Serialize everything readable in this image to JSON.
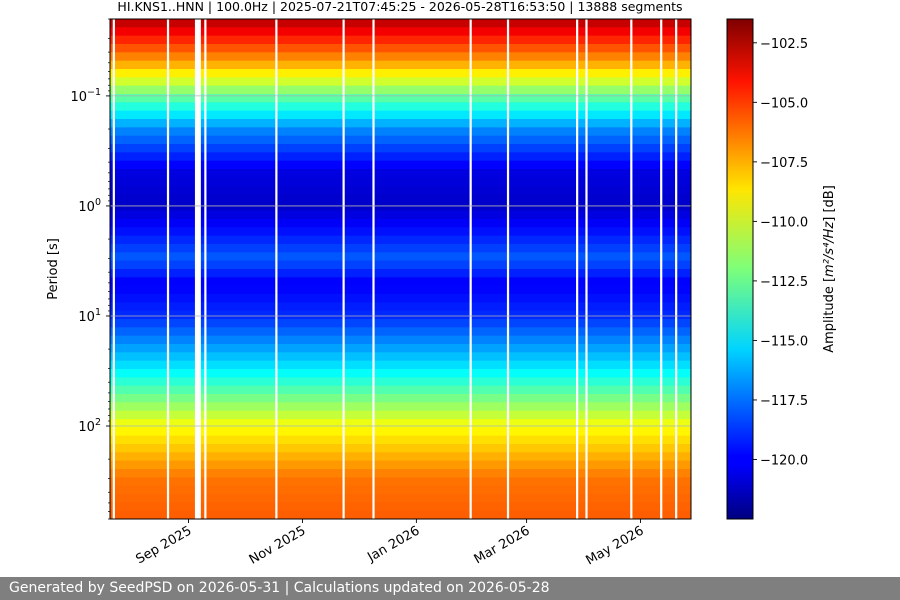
{
  "chart_data": {
    "type": "heatmap",
    "title": "HI.KNS1..HNN | 100.0Hz | 2025-07-21T07:45:25 - 2026-05-28T16:53:50 | 13888 segments",
    "ylabel": "Period [s]",
    "xlabel": "",
    "y_scale": "log",
    "y_inverted": true,
    "y_ticks": [
      {
        "value": 0.1,
        "base": "10",
        "exp": "−1"
      },
      {
        "value": 1,
        "base": "10",
        "exp": "0"
      },
      {
        "value": 10,
        "base": "10",
        "exp": "1"
      },
      {
        "value": 100,
        "base": "10",
        "exp": "2"
      }
    ],
    "ylim_period_s": [
      0.02,
      700
    ],
    "xlim": [
      "2025-07-21",
      "2026-05-28"
    ],
    "x_ticks": [
      {
        "date": "2025-09-01",
        "label": "Sep 2025"
      },
      {
        "date": "2025-11-01",
        "label": "Nov 2025"
      },
      {
        "date": "2026-01-01",
        "label": "Jan 2026"
      },
      {
        "date": "2026-03-01",
        "label": "Mar 2026"
      },
      {
        "date": "2026-05-01",
        "label": "May 2026"
      }
    ],
    "grid": true,
    "colormap": "jet",
    "colorbar": {
      "label_prefix": "Amplitude [",
      "label_unit": "m²/s⁴/Hz",
      "label_suffix": "] [dB]",
      "range_db": [
        -122.5,
        -101.5
      ],
      "ticks": [
        {
          "value": -102.5,
          "label": "−102.5"
        },
        {
          "value": -105.0,
          "label": "−105.0"
        },
        {
          "value": -107.5,
          "label": "−107.5"
        },
        {
          "value": -110.0,
          "label": "−110.0"
        },
        {
          "value": -112.5,
          "label": "−112.5"
        },
        {
          "value": -115.0,
          "label": "−115.0"
        },
        {
          "value": -117.5,
          "label": "−117.5"
        },
        {
          "value": -120.0,
          "label": "−120.0"
        }
      ]
    },
    "data_gaps": [
      "2025-07-23",
      "2025-08-21",
      "2025-09-05",
      "2025-09-06",
      "2025-09-07",
      "2025-09-10",
      "2025-10-18",
      "2025-11-23",
      "2025-12-09",
      "2026-01-30",
      "2026-02-19",
      "2026-03-28",
      "2026-04-02",
      "2026-04-26",
      "2026-05-12",
      "2026-05-20"
    ],
    "noise_profile": {
      "periods_s": [
        0.02,
        0.05,
        0.1,
        0.2,
        0.5,
        1,
        3,
        5,
        10,
        30,
        100,
        300,
        700
      ],
      "median_db": [
        -102.5,
        -107.5,
        -112.5,
        -117.0,
        -120.5,
        -121.0,
        -118.0,
        -120.0,
        -119.0,
        -115.0,
        -109.5,
        -106.5,
        -106.0
      ]
    }
  },
  "footer": {
    "text": "Generated by SeedPSD on 2026-05-31 | Calculations updated on 2026-05-28"
  }
}
